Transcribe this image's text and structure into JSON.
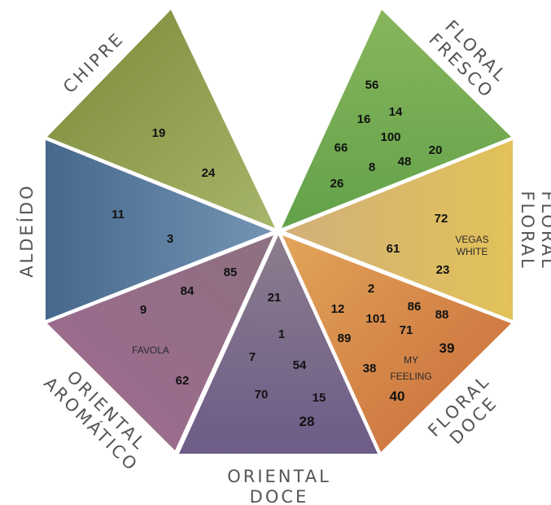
{
  "colors": {
    "chipre": [
      "#7c8a38",
      "#a6b56a"
    ],
    "floral_fresco": [
      "#88b55c",
      "#62a24a"
    ],
    "floral": [
      "#d2b07a",
      "#e2c258"
    ],
    "floral_doce": [
      "#e2a45a",
      "#c86a38"
    ],
    "oriental_doce": [
      "#8c7c8c",
      "#6c5c88"
    ],
    "oriental_aromatico": [
      "#8c7080",
      "#a26a92"
    ],
    "aldeido": [
      "#46688c",
      "#7494b4"
    ]
  },
  "categories": {
    "chipre": "CHIPRE",
    "floral_fresco": [
      "FLORAL",
      "FRESCO"
    ],
    "floral": [
      "FLORAL",
      "FLORAL"
    ],
    "floral_doce": [
      "FLORAL",
      "DOCE"
    ],
    "oriental_doce": [
      "ORIENTAL",
      "DOCE"
    ],
    "oriental_aromatico": [
      "ORIENTAL",
      "AROMÁTICO"
    ],
    "aldeido": "ALDEÍDO"
  },
  "numbers": {
    "chipre": [
      "19",
      "24"
    ],
    "floral_fresco": [
      "56",
      "14",
      "16",
      "100",
      "66",
      "20",
      "48",
      "8",
      "26"
    ],
    "floral": [
      "72",
      "61",
      "23"
    ],
    "floral_doce": [
      "2",
      "12",
      "86",
      "88",
      "101",
      "71",
      "89",
      "39",
      "38",
      "40"
    ],
    "oriental_doce": [
      "21",
      "1",
      "7",
      "54",
      "70",
      "15",
      "28"
    ],
    "oriental_aromatico": [
      "85",
      "84",
      "9",
      "62"
    ],
    "aldeido": [
      "11",
      "3"
    ]
  },
  "perfumes": {
    "vegas_white": [
      "VEGAS",
      "WHITE"
    ],
    "favola": "FAVOLA",
    "my_feeling": [
      "MY",
      "FEELING"
    ]
  }
}
